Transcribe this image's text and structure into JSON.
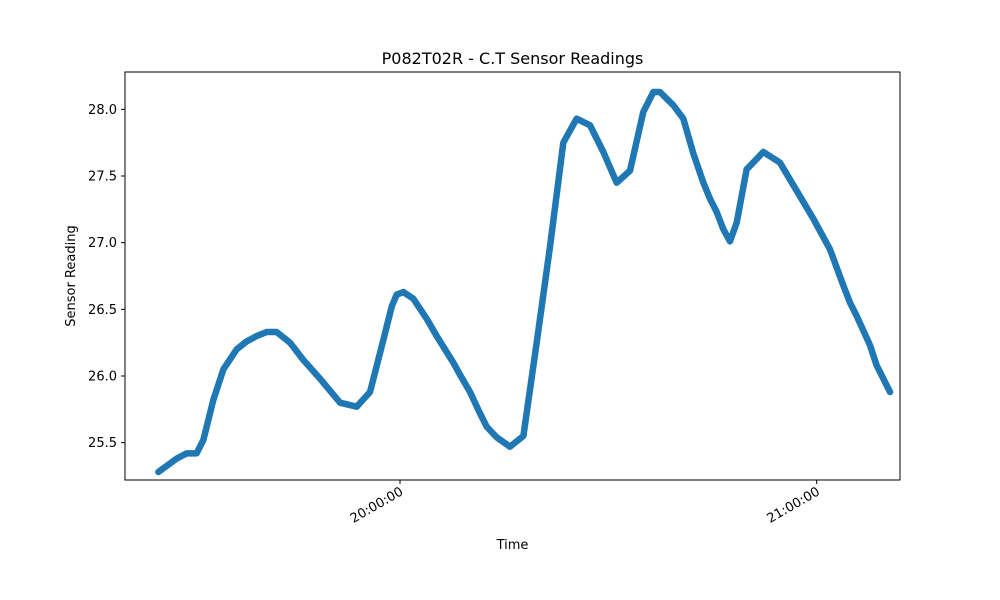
{
  "chart_data": {
    "type": "line",
    "title": "P082T02R - C.T Sensor Readings",
    "xlabel": "Time",
    "ylabel": "Sensor Reading",
    "xlim": [
      "19:20:24",
      "21:12:00"
    ],
    "ylim": [
      25.22,
      28.28
    ],
    "x_ticks": [
      "20:00:00",
      "21:00:00"
    ],
    "y_ticks": [
      25.5,
      26.0,
      26.5,
      27.0,
      27.5,
      28.0
    ],
    "y_tick_labels": [
      "25.5",
      "26.0",
      "26.5",
      "27.0",
      "27.5",
      "28.0"
    ],
    "grid": false,
    "line_color": "#1f77b4",
    "series": [
      {
        "x": [
          "19:25:12",
          "19:27:50",
          "19:29:17",
          "19:30:43",
          "19:31:41",
          "19:33:07",
          "19:34:34",
          "19:36:29",
          "19:37:56",
          "19:39:22",
          "19:40:48",
          "19:42:14",
          "19:44:10",
          "19:46:05",
          "19:48:29",
          "19:51:22",
          "19:53:46",
          "19:55:41",
          "19:57:36",
          "19:58:48",
          "19:59:31",
          "20:00:29",
          "20:01:55",
          "20:03:50",
          "20:05:17",
          "20:06:43",
          "20:07:41",
          "20:08:38",
          "20:10:05",
          "20:11:31",
          "20:12:29",
          "20:13:55",
          "20:15:50",
          "20:17:46",
          "20:19:41",
          "20:21:36",
          "20:23:31",
          "20:25:26",
          "20:27:22",
          "20:29:17",
          "20:31:12",
          "20:33:07",
          "20:35:02",
          "20:36:29",
          "20:37:26",
          "20:38:24",
          "20:39:22",
          "20:40:48",
          "20:42:14",
          "20:43:41",
          "20:44:38",
          "20:45:36",
          "20:46:34",
          "20:47:31",
          "20:48:29",
          "20:49:55",
          "20:52:19",
          "20:54:43",
          "20:57:07",
          "20:59:31",
          "21:01:55",
          "21:03:50",
          "21:04:48",
          "21:05:46",
          "21:07:41",
          "21:08:38",
          "21:09:36",
          "21:10:34"
        ],
        "y": [
          25.28,
          25.38,
          25.42,
          25.42,
          25.52,
          25.82,
          26.05,
          26.2,
          26.26,
          26.3,
          26.33,
          26.33,
          26.25,
          26.12,
          25.98,
          25.8,
          25.77,
          25.88,
          26.27,
          26.52,
          26.61,
          26.63,
          26.58,
          26.43,
          26.3,
          26.18,
          26.1,
          26.01,
          25.88,
          25.72,
          25.62,
          25.54,
          25.47,
          25.55,
          26.25,
          26.97,
          27.75,
          27.93,
          27.88,
          27.68,
          27.45,
          27.54,
          27.98,
          28.13,
          28.13,
          28.08,
          28.03,
          27.93,
          27.67,
          27.45,
          27.33,
          27.23,
          27.1,
          27.01,
          27.15,
          27.55,
          27.68,
          27.6,
          27.39,
          27.18,
          26.95,
          26.68,
          26.55,
          26.45,
          26.23,
          26.08,
          25.98,
          25.88
        ]
      }
    ]
  }
}
